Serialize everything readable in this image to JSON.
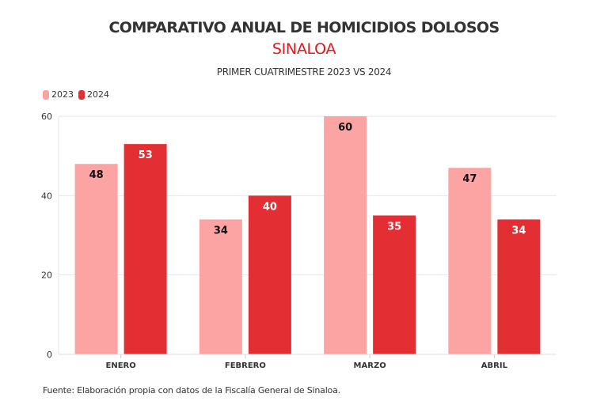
{
  "chart_data": {
    "type": "bar",
    "title": "COMPARATIVO ANUAL DE HOMICIDIOS DOLOSOS",
    "subtitle_region": "SINALOA",
    "subtitle": "PRIMER CUATRIMESTRE 2023 VS 2024",
    "categories": [
      "ENERO",
      "FEBRERO",
      "MARZO",
      "ABRIL"
    ],
    "series": [
      {
        "name": "2023",
        "values": [
          48,
          34,
          60,
          47
        ],
        "color": "#fca3a3",
        "label_color": "#111111"
      },
      {
        "name": "2024",
        "values": [
          53,
          40,
          35,
          34
        ],
        "color": "#e32f33",
        "label_color": "#ffffff"
      }
    ],
    "xlabel": "",
    "ylabel": "",
    "ylim": [
      0,
      60
    ],
    "yticks": [
      0,
      20,
      40,
      60
    ],
    "grid": true,
    "legend_position": "top-left",
    "source": "Fuente: Elaboración propia con datos de la Fiscalía General de Sinaloa."
  }
}
